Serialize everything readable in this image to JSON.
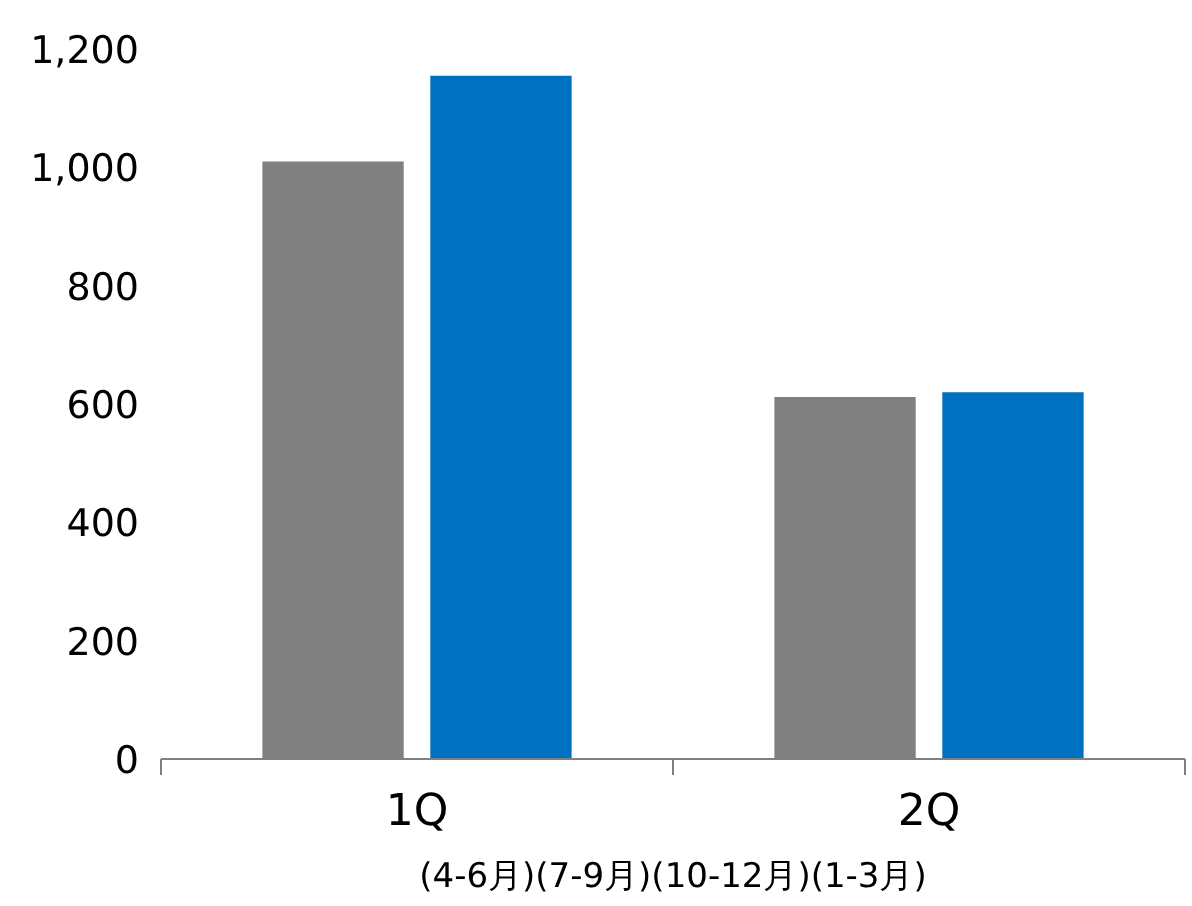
{
  "chart_data": {
    "type": "bar",
    "categories": [
      "1Q",
      "2Q"
    ],
    "series": [
      {
        "color": "#808080",
        "values": [
          1010,
          612
        ]
      },
      {
        "color": "#0070c0",
        "values": [
          1155,
          620
        ]
      }
    ],
    "ylim": [
      0,
      1200
    ],
    "yticks": [
      0,
      {
        "value": 200,
        "label": "200"
      },
      {
        "value": 400,
        "label": "400"
      },
      {
        "value": 600,
        "label": "600"
      },
      {
        "value": 800,
        "label": "800"
      },
      {
        "value": 1000,
        "label": "1,000"
      },
      {
        "value": 1200,
        "label": "1,200"
      }
    ],
    "grid": false,
    "annotations": [
      "(4-6月)(7-9月)(10-12月)(1-3月)"
    ]
  }
}
